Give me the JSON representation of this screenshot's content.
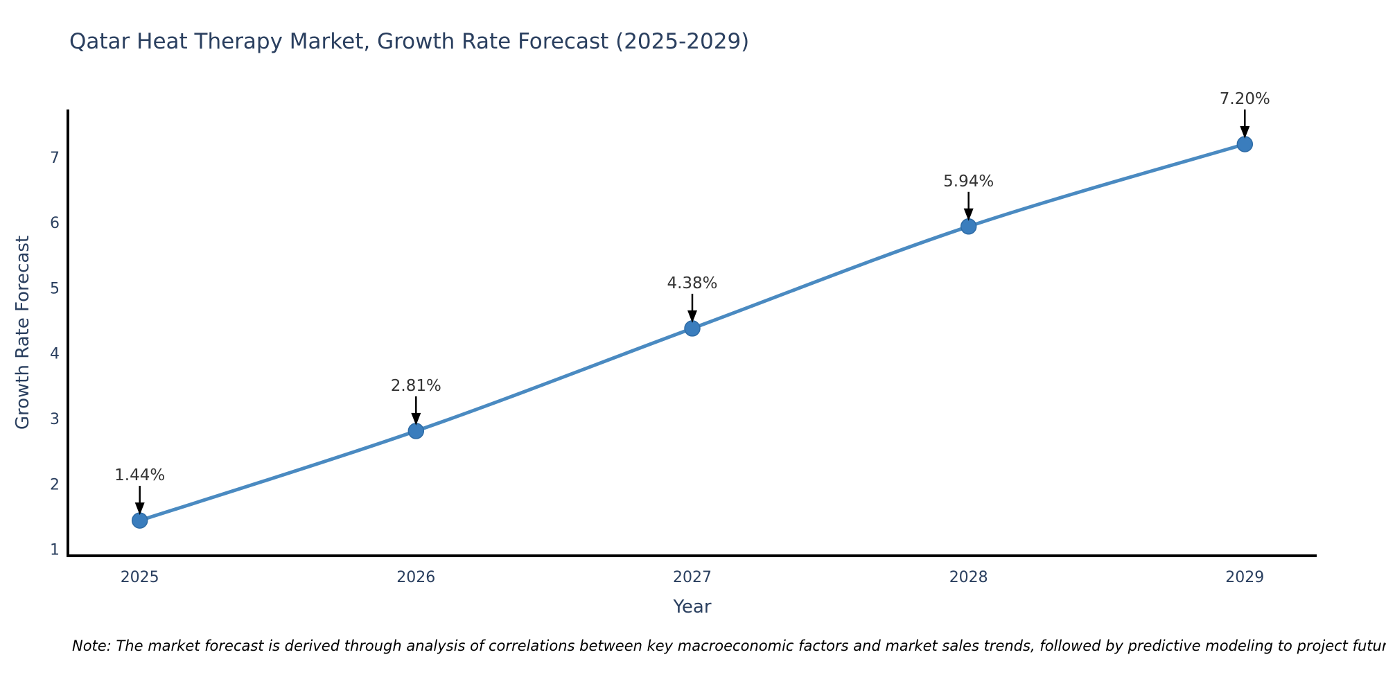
{
  "figure": {
    "note": "Note: The market forecast is derived through analysis of correlations between key macroeconomic factors and market sales trends, followed by predictive modeling to project future sales."
  },
  "chart_data": {
    "type": "line",
    "title": "Qatar Heat Therapy Market, Growth Rate Forecast (2025-2029)",
    "xlabel": "Year",
    "ylabel": "Growth Rate Forecast",
    "x": [
      2025,
      2026,
      2027,
      2028,
      2029
    ],
    "x_tick_labels": [
      "2025",
      "2026",
      "2027",
      "2028",
      "2029"
    ],
    "values": [
      1.44,
      2.81,
      4.38,
      5.94,
      7.2
    ],
    "point_labels": [
      "1.44%",
      "2.81%",
      "4.38%",
      "5.94%",
      "7.20%"
    ],
    "y_ticks": [
      1,
      2,
      3,
      4,
      5,
      6,
      7
    ],
    "xlim": [
      2024.74,
      2029.26
    ],
    "ylim": [
      0.9,
      7.73
    ],
    "grid": false,
    "legend": "none",
    "line_shape": "spline",
    "annotation_style": "black-down-arrow",
    "colors": {
      "line": "#4a8ac1",
      "marker": "#3a7dbd",
      "marker_edge": "#2e6ba5",
      "axis_text": "#2a3f5f",
      "annotation_text": "#333333",
      "arrow": "#000000",
      "spine": "#000000",
      "background": "#ffffff"
    }
  }
}
